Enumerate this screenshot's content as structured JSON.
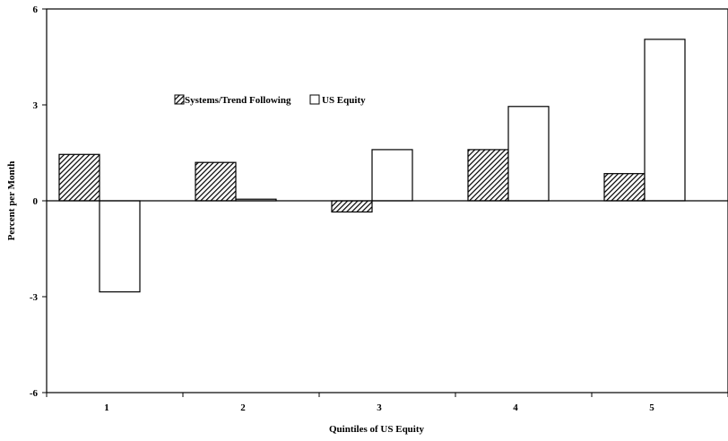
{
  "chart_data": {
    "type": "bar",
    "title": "",
    "xlabel": "Quintiles of US Equity",
    "ylabel": "Percent per Month",
    "categories": [
      "1",
      "2",
      "3",
      "4",
      "5"
    ],
    "ylim": [
      -6,
      6
    ],
    "yticks": [
      "6",
      "3",
      "0",
      "-3",
      "-6"
    ],
    "yticks_values": [
      6,
      3,
      0,
      -3,
      -6
    ],
    "grid": false,
    "legend_position": "upper-left-inside",
    "series": [
      {
        "name": "Systems/Trend Following",
        "fill": "hatched",
        "values": [
          1.45,
          1.2,
          -0.35,
          1.6,
          0.85
        ]
      },
      {
        "name": "US Equity",
        "fill": "white",
        "values": [
          -2.85,
          0.05,
          1.6,
          2.95,
          5.05
        ]
      }
    ]
  }
}
